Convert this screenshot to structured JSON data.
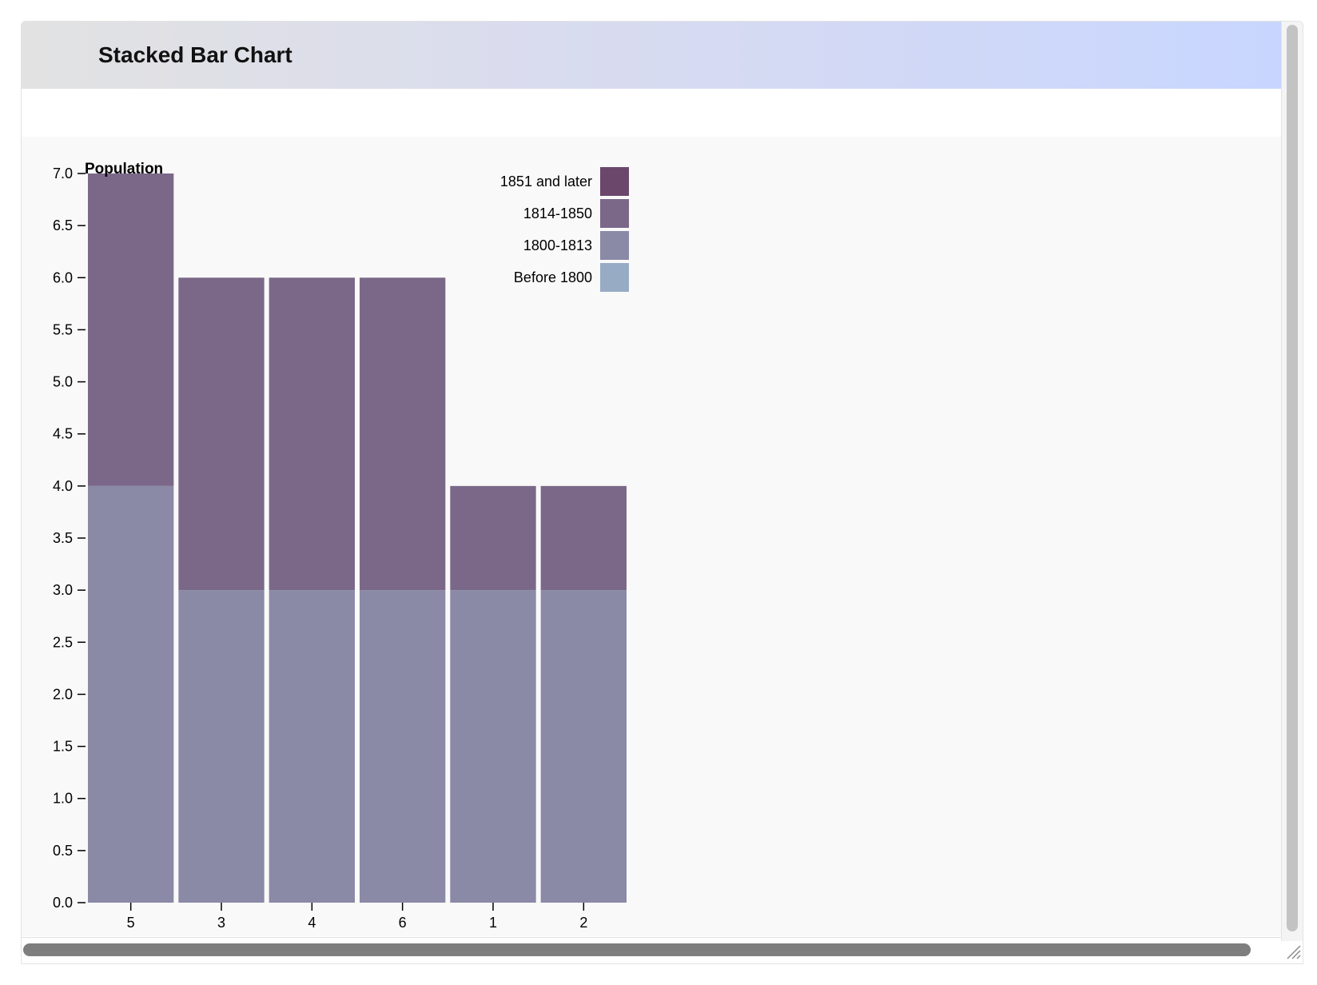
{
  "window": {
    "title": "Stacked Bar Chart"
  },
  "colors": {
    "before_1800": "#98abc5",
    "1800_1813": "#8a89a6",
    "1814_1850": "#7b6888",
    "1851_later": "#6b486b",
    "chart_background": "#f9f9f9"
  },
  "chart_data": {
    "type": "bar",
    "stacked": true,
    "title": "",
    "ylabel": "Population",
    "xlabel": "",
    "categories": [
      "5",
      "3",
      "4",
      "6",
      "1",
      "2"
    ],
    "series": [
      {
        "name": "Before 1800",
        "color": "#98abc5",
        "values": [
          0,
          0,
          0,
          0,
          0,
          0
        ]
      },
      {
        "name": "1800-1813",
        "color": "#8a89a6",
        "values": [
          4,
          3,
          3,
          3,
          3,
          3
        ]
      },
      {
        "name": "1814-1850",
        "color": "#7b6888",
        "values": [
          3,
          3,
          3,
          3,
          1,
          1
        ]
      },
      {
        "name": "1851 and later",
        "color": "#6b486b",
        "values": [
          0,
          0,
          0,
          0,
          0,
          0
        ]
      }
    ],
    "legend_order": [
      "1851 and later",
      "1814-1850",
      "1800-1813",
      "Before 1800"
    ],
    "ylim": [
      0,
      7
    ],
    "yticks": [
      "0.0",
      "0.5",
      "1.0",
      "1.5",
      "2.0",
      "2.5",
      "3.0",
      "3.5",
      "4.0",
      "4.5",
      "5.0",
      "5.5",
      "6.0",
      "6.5",
      "7.0"
    ],
    "grid": false,
    "legend_position": "top-right"
  }
}
